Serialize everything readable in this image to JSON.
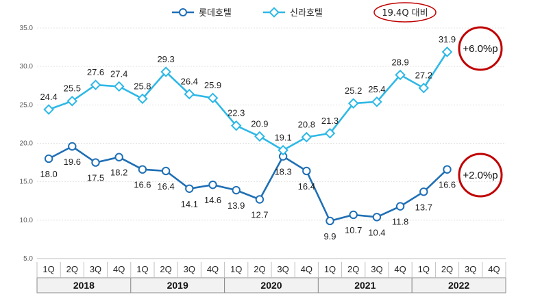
{
  "chart_data": {
    "type": "line",
    "title": "",
    "ylim": [
      5,
      35
    ],
    "yticks": [
      "5.0",
      "10.0",
      "15.0",
      "20.0",
      "25.0",
      "30.0",
      "35.0"
    ],
    "quarters": [
      "1Q",
      "2Q",
      "3Q",
      "4Q",
      "1Q",
      "2Q",
      "3Q",
      "4Q",
      "1Q",
      "2Q",
      "3Q",
      "4Q",
      "1Q",
      "2Q",
      "3Q",
      "4Q",
      "1Q",
      "2Q",
      "3Q",
      "4Q"
    ],
    "years": [
      "2018",
      "2019",
      "2020",
      "2021",
      "2022"
    ],
    "series": [
      {
        "name": "롯데호텔",
        "color": "#1F6FB5",
        "marker": "circle",
        "values": [
          18.0,
          19.6,
          17.5,
          18.2,
          16.6,
          16.4,
          14.1,
          14.6,
          13.9,
          12.7,
          18.3,
          16.4,
          9.9,
          10.7,
          10.4,
          11.8,
          13.7,
          16.6
        ],
        "labels": [
          "18.0",
          "19.6",
          "17.5",
          "18.2",
          "16.6",
          "16.4",
          "14.1",
          "14.6",
          "13.9",
          "12.7",
          "18.3",
          "16.4",
          "9.9",
          "10.7",
          "10.4",
          "11.8",
          "13.7",
          "16.6"
        ]
      },
      {
        "name": "신라호텔",
        "color": "#2EB8E6",
        "marker": "diamond",
        "values": [
          24.4,
          25.5,
          27.6,
          27.4,
          25.8,
          29.3,
          26.4,
          25.9,
          22.3,
          20.9,
          19.1,
          20.8,
          21.3,
          25.2,
          25.4,
          28.9,
          27.2,
          31.9
        ],
        "labels": [
          "24.4",
          "25.5",
          "27.6",
          "27.4",
          "25.8",
          "29.3",
          "26.4",
          "25.9",
          "22.3",
          "20.9",
          "19.1",
          "20.8",
          "21.3",
          "25.2",
          "25.4",
          "28.9",
          "27.2",
          "31.9"
        ]
      }
    ],
    "legend_position": "top",
    "annotations": {
      "compare_label": "19.4Q 대비",
      "shilla_change": "+6.0%p",
      "lotte_change": "+2.0%p"
    },
    "accent_color": "#C00000"
  }
}
